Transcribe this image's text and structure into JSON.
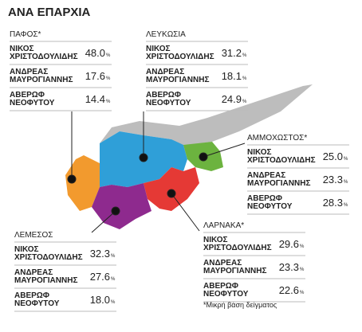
{
  "header": {
    "title": "ΑΝΑ ΕΠΑΡΧΙΑ"
  },
  "unit": "%",
  "districts": [
    {
      "name": "ΠΑΦΟΣ*",
      "candidates": [
        {
          "lines": [
            "ΝΙΚΟΣ",
            "ΧΡΙΣΤΟΔΟΥΛΙΔΗΣ"
          ],
          "value": "48.0"
        },
        {
          "lines": [
            "ΑΝΔΡΕΑΣ",
            "ΜΑΥΡΟΓΙΑΝΝΗΣ"
          ],
          "value": "17.6"
        },
        {
          "lines": [
            "ΑΒΕΡΩΦ",
            "ΝΕΟΦΥΤΟΥ"
          ],
          "value": "14.4"
        }
      ]
    },
    {
      "name": "ΛΕΥΚΩΣΙΑ",
      "candidates": [
        {
          "lines": [
            "ΝΙΚΟΣ",
            "ΧΡΙΣΤΟΔΟΥΛΙΔΗΣ"
          ],
          "value": "31.2"
        },
        {
          "lines": [
            "ΑΝΔΡΕΑΣ",
            "ΜΑΥΡΟΓΙΑΝΝΗΣ"
          ],
          "value": "18.1"
        },
        {
          "lines": [
            "ΑΒΕΡΩΦ",
            "ΝΕΟΦΥΤΟΥ"
          ],
          "value": "24.9"
        }
      ]
    },
    {
      "name": "ΑΜΜΟΧΩΣΤΟΣ*",
      "candidates": [
        {
          "lines": [
            "ΝΙΚΟΣ",
            "ΧΡΙΣΤΟΔΟΥΛΙΔΗΣ"
          ],
          "value": "25.0"
        },
        {
          "lines": [
            "ΑΝΔΡΕΑΣ",
            "ΜΑΥΡΟΓΙΑΝΝΗΣ"
          ],
          "value": "23.3"
        },
        {
          "lines": [
            "ΑΒΕΡΩΦ",
            "ΝΕΟΦΥΤΟΥ"
          ],
          "value": "28.3"
        }
      ]
    },
    {
      "name": "ΛΕΜΕΣΟΣ",
      "candidates": [
        {
          "lines": [
            "ΝΙΚΟΣ",
            "ΧΡΙΣΤΟΔΟΥΛΙΔΗΣ"
          ],
          "value": "32.3"
        },
        {
          "lines": [
            "ΑΝΔΡΕΑΣ",
            "ΜΑΥΡΟΓΙΑΝΝΗΣ"
          ],
          "value": "27.6"
        },
        {
          "lines": [
            "ΑΒΕΡΩΦ",
            "ΝΕΟΦΥΤΟΥ"
          ],
          "value": "18.0"
        }
      ]
    },
    {
      "name": "ΛΑΡΝΑΚΑ*",
      "candidates": [
        {
          "lines": [
            "ΝΙΚΟΣ",
            "ΧΡΙΣΤΟΔΟΥΛΙΔΗΣ"
          ],
          "value": "29.6"
        },
        {
          "lines": [
            "ΑΝΔΡΕΑΣ",
            "ΜΑΥΡΟΓΙΑΝΝΗΣ"
          ],
          "value": "23.3"
        },
        {
          "lines": [
            "ΑΒΕΡΩΦ",
            "ΝΕΟΦΥΤΟΥ"
          ],
          "value": "22.6"
        }
      ]
    }
  ],
  "footnote": "*Μικρή βάση δείγματος"
}
